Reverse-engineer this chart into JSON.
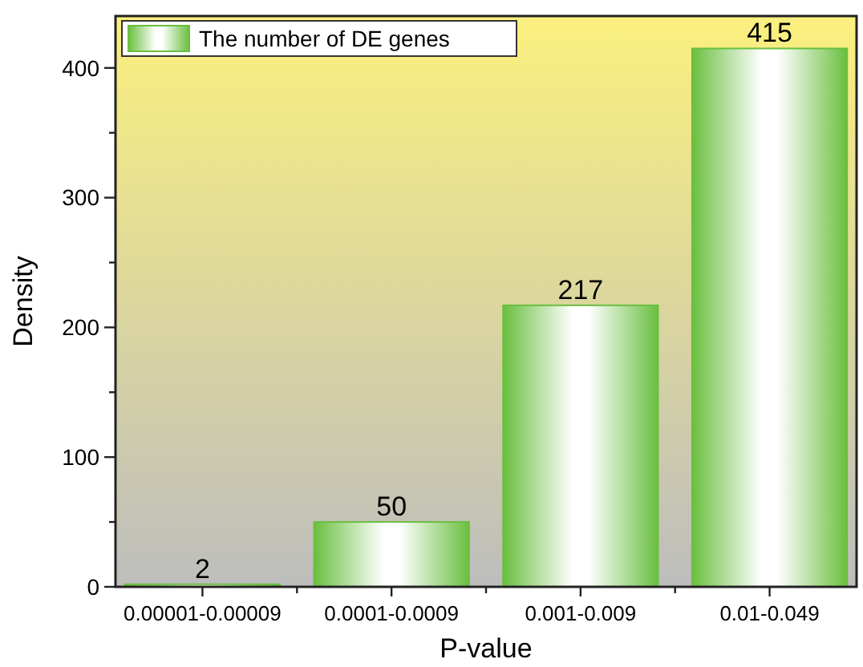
{
  "chart_data": {
    "type": "bar",
    "xlabel": "P-value",
    "ylabel": "Density",
    "categories": [
      "0.00001-0.00009",
      "0.0001-0.0009",
      "0.001-0.009",
      "0.01-0.049"
    ],
    "series": [
      {
        "name": "The number of DE genes",
        "color": "#6abf3f",
        "values": [
          2,
          50,
          217,
          415
        ]
      }
    ],
    "data_labels": true,
    "legend": "top left",
    "ylim": [
      0,
      440
    ],
    "yticks": [
      0,
      {
        "value": 50,
        "label": null
      },
      100,
      {
        "value": 150,
        "label": null
      },
      200,
      {
        "value": 250,
        "label": null
      },
      300,
      {
        "value": 350,
        "label": null
      },
      400
    ]
  }
}
